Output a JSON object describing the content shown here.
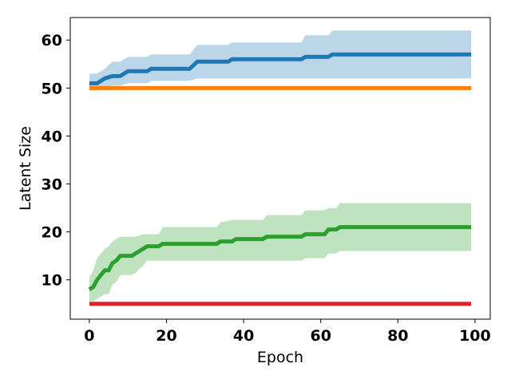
{
  "chart_data": {
    "type": "line",
    "title": "",
    "xlabel": "Epoch",
    "ylabel": "Latent Size",
    "xlim": [
      -4.95,
      103.95
    ],
    "ylim": [
      1.8,
      64.7
    ],
    "xticks": [
      0,
      20,
      40,
      60,
      80,
      100
    ],
    "yticks": [
      10,
      20,
      30,
      40,
      50,
      60
    ],
    "grid": false,
    "legend": "none",
    "series": [
      {
        "color": "#1f77b4",
        "band_opacity": 0.3,
        "points": [
          [
            0,
            51,
            49.5,
            53
          ],
          [
            2,
            51,
            49.5,
            53
          ],
          [
            4,
            52,
            50,
            54
          ],
          [
            6,
            52.5,
            50.5,
            55.5
          ],
          [
            8,
            52.5,
            50.5,
            55.5
          ],
          [
            10,
            53.5,
            51,
            56.5
          ],
          [
            15,
            53.5,
            51,
            56.5
          ],
          [
            16,
            54,
            51.5,
            57
          ],
          [
            26,
            54,
            51.5,
            57
          ],
          [
            28,
            55.5,
            52,
            59
          ],
          [
            36,
            55.5,
            52,
            59
          ],
          [
            37,
            56,
            52,
            59.5
          ],
          [
            55,
            56,
            52,
            59.5
          ],
          [
            56,
            56.5,
            52,
            61
          ],
          [
            62,
            56.5,
            52,
            61
          ],
          [
            63,
            57,
            52,
            62
          ],
          [
            99,
            57,
            52,
            62
          ]
        ]
      },
      {
        "color": "#ff7f0e",
        "band_opacity": 0.3,
        "points": [
          [
            0,
            50,
            50,
            50
          ],
          [
            99,
            50,
            50,
            50
          ]
        ]
      },
      {
        "color": "#2ca02c",
        "band_opacity": 0.3,
        "points": [
          [
            0,
            8,
            5.5,
            10.5
          ],
          [
            1,
            8.5,
            5.5,
            12
          ],
          [
            2,
            10,
            6,
            14.5
          ],
          [
            3,
            11,
            6.5,
            15.5
          ],
          [
            4,
            12,
            7,
            16.5
          ],
          [
            5,
            12,
            7,
            17
          ],
          [
            6,
            13.5,
            9,
            18
          ],
          [
            7,
            14,
            9.5,
            18.5
          ],
          [
            8,
            15,
            11,
            19
          ],
          [
            11,
            15,
            11,
            19
          ],
          [
            12,
            15.5,
            11.5,
            19
          ],
          [
            14,
            16.5,
            13,
            19.5
          ],
          [
            15,
            17,
            14,
            19.5
          ],
          [
            18,
            17,
            14,
            19.5
          ],
          [
            19,
            17.5,
            14,
            21
          ],
          [
            33,
            17.5,
            14,
            21
          ],
          [
            34,
            18,
            14,
            22
          ],
          [
            37,
            18,
            14,
            22.5
          ],
          [
            38,
            18.5,
            14,
            22.5
          ],
          [
            45,
            18.5,
            14,
            22.5
          ],
          [
            46,
            19,
            14,
            23.5
          ],
          [
            55,
            19,
            14,
            23.5
          ],
          [
            56,
            19.5,
            14.5,
            24.5
          ],
          [
            61,
            19.5,
            14.5,
            24.5
          ],
          [
            62,
            20.5,
            15.5,
            25
          ],
          [
            64,
            20.5,
            15.5,
            25
          ],
          [
            65,
            21,
            16,
            26
          ],
          [
            99,
            21,
            16,
            26
          ]
        ]
      },
      {
        "color": "#d62728",
        "band_opacity": 0.3,
        "points": [
          [
            0,
            5,
            5,
            5
          ],
          [
            99,
            5,
            5,
            5
          ]
        ]
      }
    ]
  }
}
